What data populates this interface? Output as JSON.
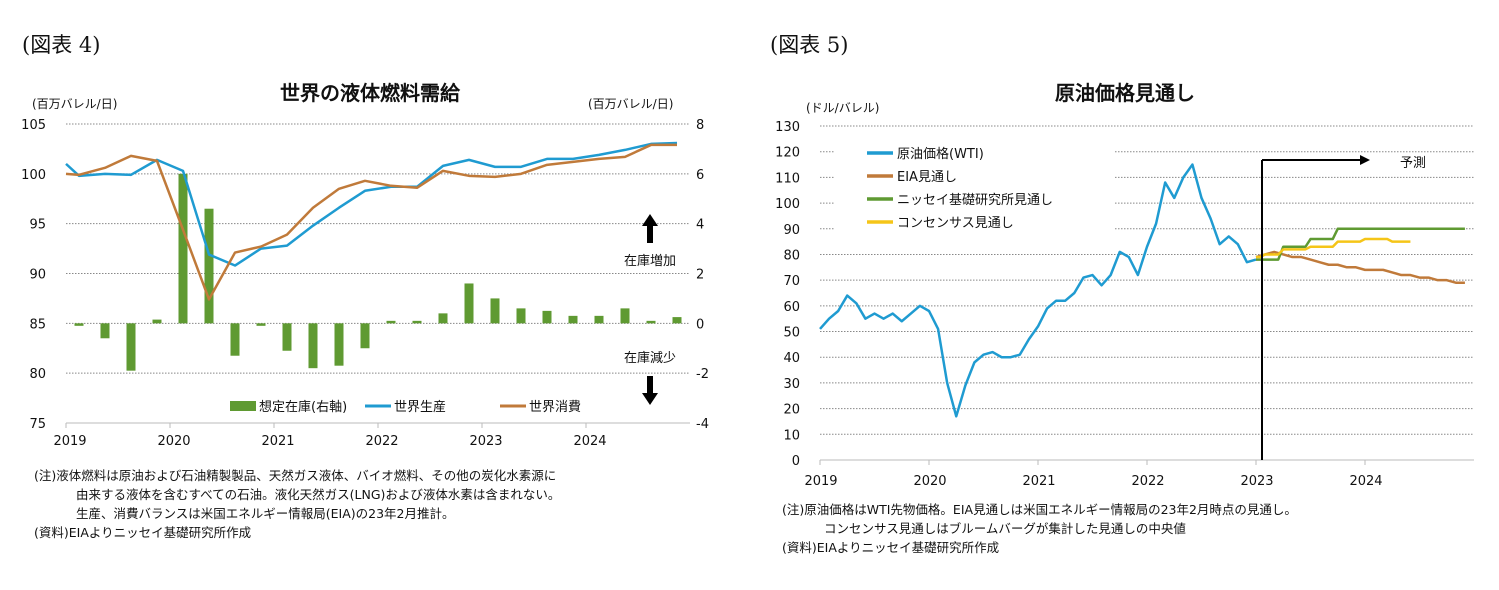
{
  "left": {
    "figure_label": "(図表 4)",
    "notes": [
      "(注)液体燃料は原油および石油精製製品、天然ガス液体、バイオ燃料、その他の炭化水素源に",
      "由来する液体を含むすべての石油。液化天然ガス(LNG)および液体水素は含まれない。",
      "生産、消費バランスは米国エネルギー情報局(EIA)の23年2月推計。",
      "(資料)EIAよりニッセイ基礎研究所作成"
    ],
    "annotations": {
      "increase": "在庫増加",
      "decrease": "在庫減少"
    }
  },
  "right": {
    "figure_label": "(図表 5)",
    "forecast_label": "予測",
    "notes": [
      "(注)原油価格はWTI先物価格。EIA見通しは米国エネルギー情報局の23年2月時点の見通し。",
      "コンセンサス見通しはブルームバーグが集計した見通しの中央値",
      "(資料)EIAよりニッセイ基礎研究所作成"
    ]
  },
  "chart_data": [
    {
      "type": "bar+line",
      "title": "世界の液体燃料需給",
      "ylabel": "(百万バレル/日)",
      "y2label": "(百万バレル/日)",
      "ylim": [
        75,
        105
      ],
      "yticks": [
        75,
        80,
        85,
        90,
        95,
        100,
        105
      ],
      "y2lim": [
        -4,
        8
      ],
      "y2ticks": [
        -4,
        -2,
        0,
        2,
        4,
        6,
        8
      ],
      "xticks": [
        "2019",
        "2020",
        "2021",
        "2022",
        "2023",
        "2024"
      ],
      "grid": true,
      "legend": "bottom",
      "x": [
        "2019Q1",
        "2019Q2",
        "2019Q3",
        "2019Q4",
        "2020Q1",
        "2020Q2",
        "2020Q3",
        "2020Q4",
        "2021Q1",
        "2021Q2",
        "2021Q3",
        "2021Q4",
        "2022Q1",
        "2022Q2",
        "2022Q3",
        "2022Q4",
        "2023Q1",
        "2023Q2",
        "2023Q3",
        "2023Q4",
        "2024Q1",
        "2024Q2",
        "2024Q3",
        "2024Q4"
      ],
      "series": [
        {
          "name": "想定在庫(右軸)",
          "type": "bar",
          "axis": "right",
          "color": "#5f9a32",
          "values": [
            -0.1,
            -0.6,
            -1.9,
            0.15,
            6.0,
            4.6,
            -1.3,
            -0.1,
            -1.1,
            -1.8,
            -1.7,
            -1.0,
            0.1,
            0.1,
            0.4,
            1.6,
            1.0,
            0.6,
            0.5,
            0.3,
            0.3,
            0.6,
            0.1,
            0.25
          ]
        },
        {
          "name": "世界生産",
          "type": "line",
          "axis": "left",
          "color": "#1f9bd1",
          "start_value": 101.0,
          "values": [
            99.8,
            100.0,
            99.9,
            101.4,
            100.3,
            91.9,
            90.8,
            92.5,
            92.8,
            94.8,
            96.6,
            98.3,
            98.7,
            98.7,
            100.8,
            101.4,
            100.7,
            100.7,
            101.5,
            101.5,
            101.9,
            102.4,
            103.0,
            103.1
          ]
        },
        {
          "name": "世界消費",
          "type": "line",
          "axis": "left",
          "color": "#c07a3a",
          "start_value": 100.0,
          "values": [
            99.9,
            100.6,
            101.8,
            101.3,
            94.4,
            87.4,
            92.1,
            92.7,
            93.9,
            96.6,
            98.5,
            99.3,
            98.8,
            98.6,
            100.3,
            99.8,
            99.7,
            100.0,
            100.9,
            101.2,
            101.5,
            101.7,
            102.9,
            102.9
          ]
        }
      ]
    },
    {
      "type": "line",
      "title": "原油価格見通し",
      "ylabel": "(ドル/バレル)",
      "ylim": [
        0,
        130
      ],
      "yticks": [
        0,
        10,
        20,
        30,
        40,
        50,
        60,
        70,
        80,
        90,
        100,
        110,
        120,
        130
      ],
      "xticks": [
        "2019",
        "2020",
        "2021",
        "2022",
        "2023",
        "2024"
      ],
      "grid": true,
      "legend": "top-left",
      "series": [
        {
          "name": "原油価格(WTI)",
          "color": "#1f9bd1",
          "start": "2019-01",
          "values": [
            51,
            55,
            58,
            64,
            61,
            55,
            57,
            55,
            57,
            54,
            57,
            60,
            58,
            51,
            30,
            17,
            29,
            38,
            41,
            42,
            40,
            40,
            41,
            47,
            52,
            59,
            62,
            62,
            65,
            71,
            72,
            68,
            72,
            81,
            79,
            72,
            83,
            92,
            108,
            102,
            110,
            115,
            102,
            94,
            84,
            87,
            84,
            77,
            78
          ]
        },
        {
          "name": "EIA見通し",
          "color": "#c07a3a",
          "start": "2023-01",
          "values": [
            79,
            80,
            81,
            80,
            79,
            79,
            78,
            77,
            76,
            76,
            75,
            75,
            74,
            74,
            74,
            73,
            72,
            72,
            71,
            71,
            70,
            70,
            69,
            69
          ]
        },
        {
          "name": "ニッセイ基礎研究所見通し",
          "color": "#5f9a32",
          "start": "2023-01",
          "values": [
            78,
            78,
            78,
            83,
            83,
            83,
            86,
            86,
            86,
            90,
            90,
            90,
            90,
            90,
            90,
            90,
            90,
            90,
            90,
            90,
            90,
            90,
            90,
            90
          ]
        },
        {
          "name": "コンセンサス見通し",
          "color": "#f5c518",
          "start": "2023-01",
          "values": [
            79,
            80,
            80,
            82,
            82,
            82,
            83,
            83,
            83,
            85,
            85,
            85,
            86,
            86,
            86,
            85,
            85,
            85
          ]
        }
      ]
    }
  ]
}
